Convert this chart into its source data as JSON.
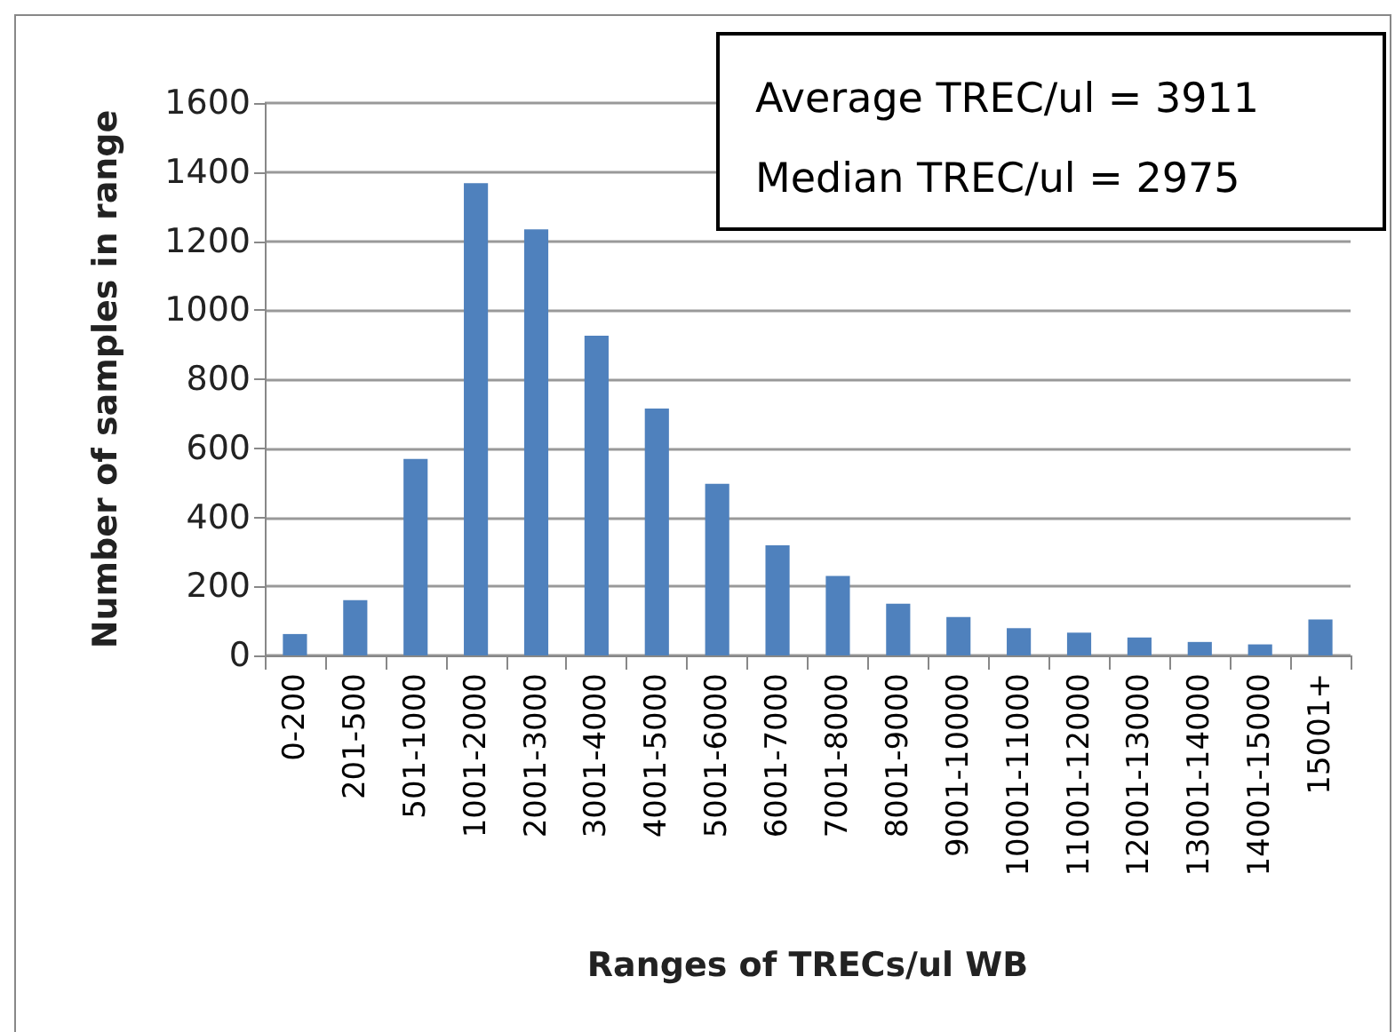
{
  "chart_data": {
    "type": "bar",
    "xlabel": "Ranges of TRECs/ul WB",
    "ylabel": "Number of samples in range",
    "categories": [
      "0-200",
      "201-500",
      "501-1000",
      "1001-2000",
      "2001-3000",
      "3001-4000",
      "4001-5000",
      "5001-6000",
      "6001-7000",
      "7001-8000",
      "8001-9000",
      "9001-10000",
      "10001-11000",
      "11001-12000",
      "12001-13000",
      "13001-14000",
      "14001-15000",
      "15001+"
    ],
    "values": [
      62,
      160,
      569,
      1368,
      1234,
      926,
      715,
      497,
      319,
      230,
      150,
      111,
      79,
      66,
      52,
      39,
      32,
      104
    ],
    "color": "#4f81bd",
    "ylim": [
      0,
      1600
    ],
    "yticks": [
      0,
      200,
      400,
      600,
      800,
      1000,
      1200,
      1400,
      1600
    ],
    "grid": "y",
    "annotations": [
      "Average TREC/ul = 3911",
      "Median TREC/ul = 2975"
    ]
  }
}
